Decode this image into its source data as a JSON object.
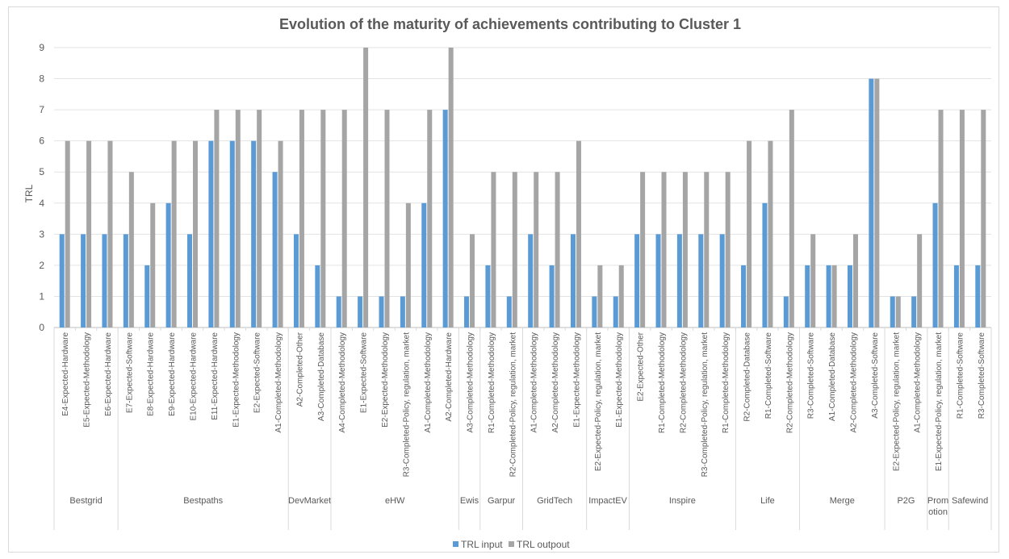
{
  "chart_data": {
    "type": "bar",
    "title": "Evolution of the maturity of achievements contributing to Cluster 1",
    "ylabel": "TRL",
    "ylim": [
      0,
      9
    ],
    "yticks": [
      0,
      1,
      2,
      3,
      4,
      5,
      6,
      7,
      8,
      9
    ],
    "grid": true,
    "legend_position": "bottom",
    "colors": {
      "TRL input": "#5b9bd5",
      "TRL outpout": "#a5a5a5"
    },
    "series_names": [
      "TRL input",
      "TRL outpout"
    ],
    "groups": [
      {
        "name": "Bestgrid",
        "items": [
          {
            "label": "E4-Expected-Hardware",
            "input": 3,
            "output": 6
          },
          {
            "label": "E5-Expected-Methodology",
            "input": 3,
            "output": 6
          },
          {
            "label": "E6-Expected-Hardware",
            "input": 3,
            "output": 6
          }
        ]
      },
      {
        "name": "Bestpaths",
        "items": [
          {
            "label": "E7-Expected-Software",
            "input": 3,
            "output": 5
          },
          {
            "label": "E8-Expected-Hardware",
            "input": 2,
            "output": 4
          },
          {
            "label": "E9-Expected-Hardware",
            "input": 4,
            "output": 6
          },
          {
            "label": "E10-Expected-Hardware",
            "input": 3,
            "output": 6
          },
          {
            "label": "E11-Expected-Hardware",
            "input": 6,
            "output": 7
          },
          {
            "label": "E1-Expected-Methodology",
            "input": 6,
            "output": 7
          },
          {
            "label": "E2-Expected-Software",
            "input": 6,
            "output": 7
          },
          {
            "label": "A1-Completed-Methodology",
            "input": 5,
            "output": 6
          }
        ]
      },
      {
        "name": "DevMarket",
        "items": [
          {
            "label": "A2-Completed-Other",
            "input": 3,
            "output": 7
          },
          {
            "label": "A3-Completed-Database",
            "input": 2,
            "output": 7
          }
        ]
      },
      {
        "name": "eHW",
        "items": [
          {
            "label": "A4-Completed-Methodology",
            "input": 1,
            "output": 7
          },
          {
            "label": "E1-Expected-Software",
            "input": 1,
            "output": 9
          },
          {
            "label": "E2-Expected-Methodology",
            "input": 1,
            "output": 7
          },
          {
            "label": "R3-Completed-Policy, regulation, market",
            "input": 1,
            "output": 4
          },
          {
            "label": "A1-Completed-Methodology",
            "input": 4,
            "output": 7
          },
          {
            "label": "A2-Completed-Hardware",
            "input": 7,
            "output": 9
          }
        ]
      },
      {
        "name": "Ewis",
        "items": [
          {
            "label": "A3-Completed-Methodology",
            "input": 1,
            "output": 3
          }
        ]
      },
      {
        "name": "Garpur",
        "items": [
          {
            "label": "R1-Completed-Methodology",
            "input": 2,
            "output": 5
          },
          {
            "label": "R2-Completed-Policy, regulation, market",
            "input": 1,
            "output": 5
          }
        ]
      },
      {
        "name": "GridTech",
        "items": [
          {
            "label": "A1-Completed-Methodology",
            "input": 3,
            "output": 5
          },
          {
            "label": "A2-Completed-Methodology",
            "input": 2,
            "output": 5
          },
          {
            "label": "E1-Expected-Methodology",
            "input": 3,
            "output": 6
          }
        ]
      },
      {
        "name": "ImpactEV",
        "items": [
          {
            "label": "E2-Expected-Policy, regulation, market",
            "input": 1,
            "output": 2
          },
          {
            "label": "E1-Expected-Methodology",
            "input": 1,
            "output": 2
          }
        ]
      },
      {
        "name": "Inspire",
        "items": [
          {
            "label": "E2-Expected-Other",
            "input": 3,
            "output": 5
          },
          {
            "label": "R1-Completed-Methodology",
            "input": 3,
            "output": 5
          },
          {
            "label": "R2-Completed-Methodology",
            "input": 3,
            "output": 5
          },
          {
            "label": "R3-Completed-Policy, regulation, market",
            "input": 3,
            "output": 5
          },
          {
            "label": "R1-Completed-Methodology",
            "input": 3,
            "output": 5
          }
        ]
      },
      {
        "name": "Life",
        "items": [
          {
            "label": "R2-Completed-Database",
            "input": 2,
            "output": 6
          },
          {
            "label": "R1-Completed-Software",
            "input": 4,
            "output": 6
          },
          {
            "label": "R2-Completed-Methodology",
            "input": 1,
            "output": 7
          }
        ]
      },
      {
        "name": "Merge",
        "items": [
          {
            "label": "R3-Completed-Software",
            "input": 2,
            "output": 3
          },
          {
            "label": "A1-Completed-Database",
            "input": 2,
            "output": 2
          },
          {
            "label": "A2-Completed-Methodology",
            "input": 2,
            "output": 3
          },
          {
            "label": "A3-Completed-Software",
            "input": 8,
            "output": 8
          }
        ]
      },
      {
        "name": "P2G",
        "items": [
          {
            "label": "E2-Expected-Policy, regulation, market",
            "input": 1,
            "output": 1
          },
          {
            "label": "A1-Completed-Methodology",
            "input": 1,
            "output": 3
          }
        ]
      },
      {
        "name": "Prom otion",
        "items": [
          {
            "label": "E1-Expected-Policy, regulation, market",
            "input": 4,
            "output": 7
          }
        ]
      },
      {
        "name": "Safewind",
        "items": [
          {
            "label": "R1-Completed-Software",
            "input": 2,
            "output": 7
          },
          {
            "label": "R3-Completed-Software",
            "input": 2,
            "output": 7
          }
        ]
      }
    ]
  }
}
